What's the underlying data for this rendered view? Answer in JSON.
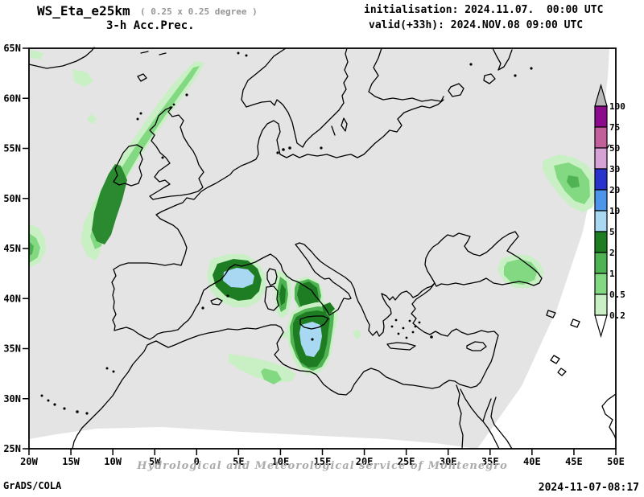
{
  "header": {
    "model": "WS_Eta_e25km",
    "grid": "( 0.25 x 0.25 degree )",
    "product": "3-h Acc.Prec.",
    "init_line": "initialisation: 2024.11.07.  00:00 UTC",
    "valid_line": "valid(+33h): 2024.NOV.08 09:00 UTC"
  },
  "map": {
    "lat_labels": [
      "65N",
      "60N",
      "55N",
      "50N",
      "45N",
      "40N",
      "35N",
      "30N",
      "25N"
    ],
    "lon_labels": [
      "20W",
      "15W",
      "10W",
      "5W",
      "0",
      "5E",
      "10E",
      "15E",
      "20E",
      "25E",
      "30E",
      "35E",
      "40E",
      "45E",
      "50E"
    ],
    "watermark": "Hydrological and Meteorological service of Montenegro"
  },
  "colorbar": {
    "boundary_labels": [
      "100",
      "75",
      "50",
      "30",
      "20",
      "10",
      "5",
      "2",
      "1",
      "0.5",
      "0.2"
    ],
    "segment_colors_top_to_bottom": [
      "#8c0a8c",
      "#c2609b",
      "#d7a3d7",
      "#2733cc",
      "#4d94eb",
      "#a8d8f2",
      "#1e7d23",
      "#4fb353",
      "#82d982",
      "#c9f0c4"
    ],
    "over_color": "#b9b9b9",
    "under_color": "#ffffff"
  },
  "precip_regions": [
    {
      "area": "NE Atlantic band west of Ireland",
      "max_band_mm": "2-5"
    },
    {
      "area": "Bay of Biscay at west map edge",
      "max_band_mm": "0.5-1"
    },
    {
      "area": "Balearic Sea NE of Mallorca",
      "max_band_mm": "5-10"
    },
    {
      "area": "East of Sardinia / Tyrrhenian Sea",
      "max_band_mm": "2-5"
    },
    {
      "area": "Sicily and sea south of Sicily",
      "max_band_mm": "5-10"
    },
    {
      "area": "Tunisian coast",
      "max_band_mm": "1-2"
    },
    {
      "area": "South-east Black Sea",
      "max_band_mm": "0.5-1"
    },
    {
      "area": "North-east corner of domain",
      "max_band_mm": "1-2"
    }
  ],
  "footer": {
    "left": "GrADS/COLA",
    "right": "2024-11-07-08:17"
  }
}
